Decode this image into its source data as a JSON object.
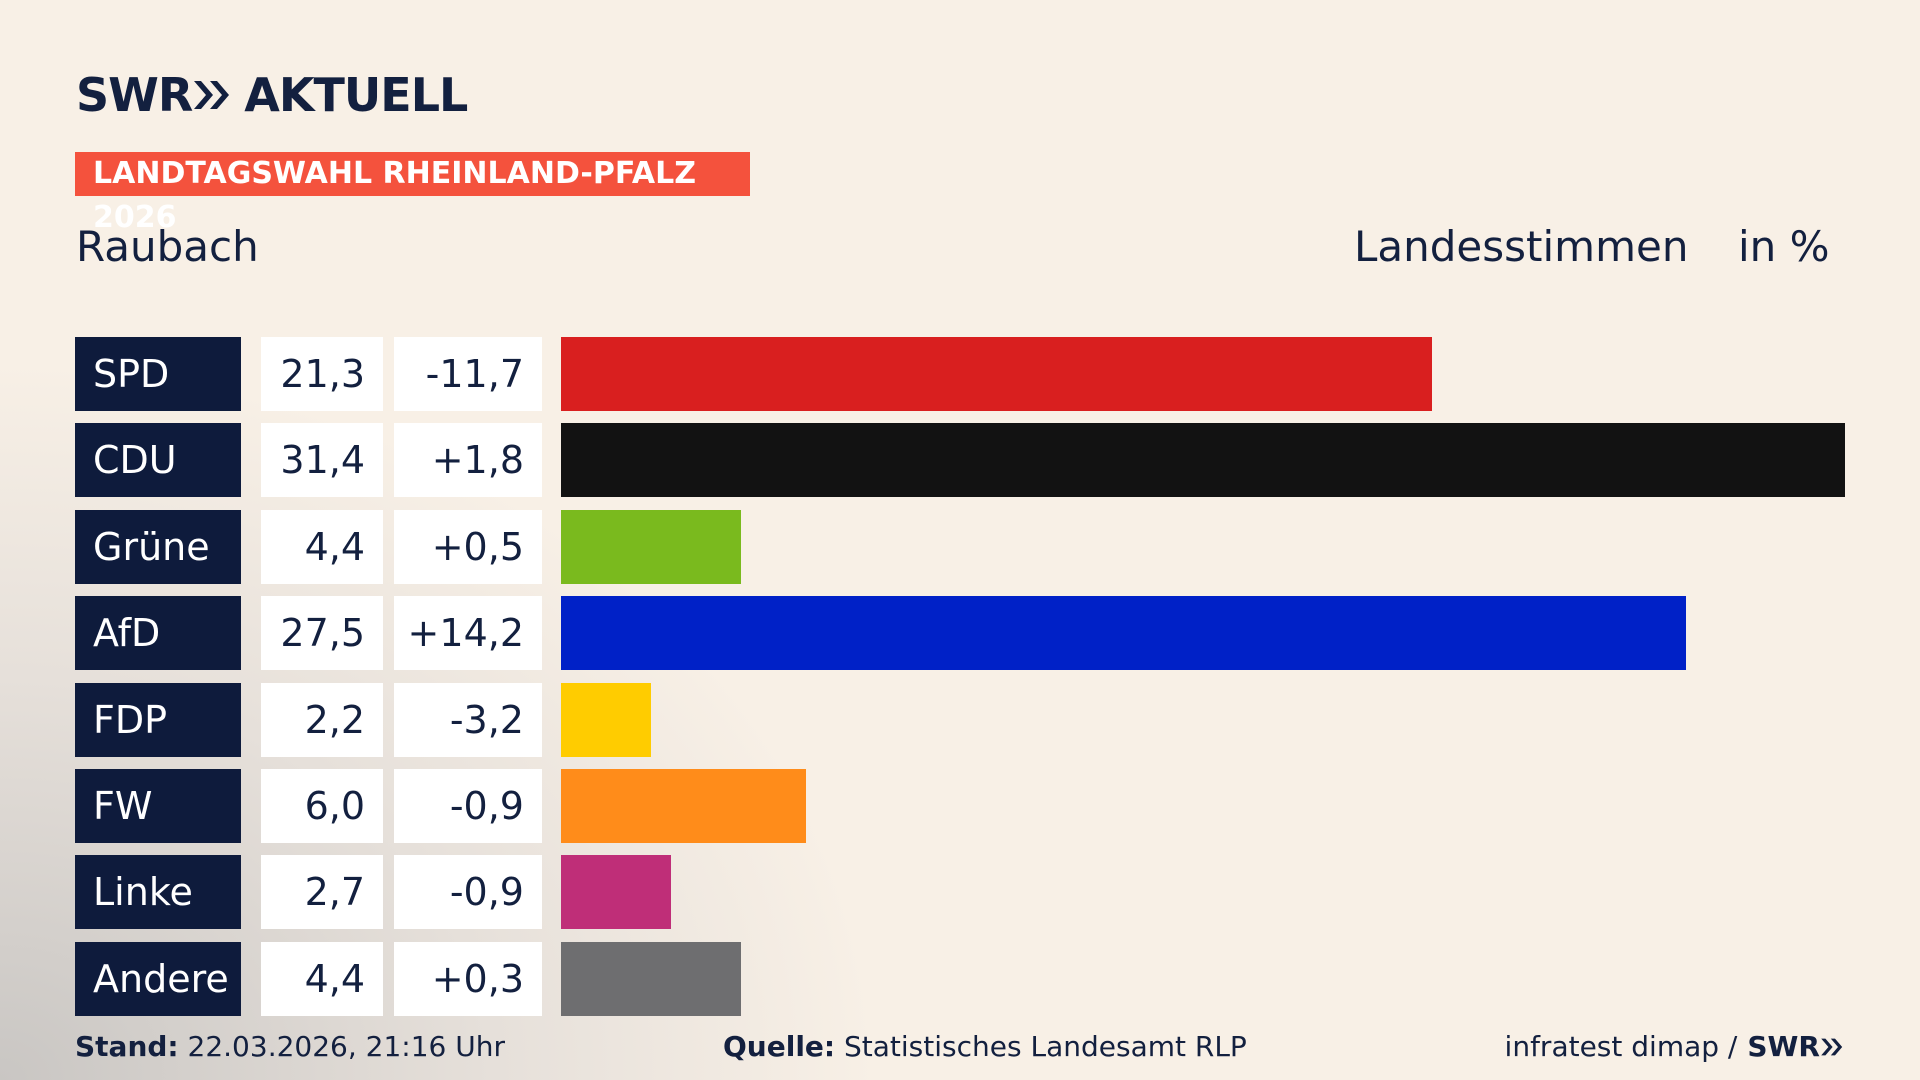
{
  "brand": {
    "name": "SWR",
    "product": "AKTUELL"
  },
  "tag": "LANDTAGSWAHL RHEINLAND-PFALZ 2026",
  "place": "Raubach",
  "chart_data": {
    "type": "bar",
    "title": "Landesstimmen",
    "unit": "in %",
    "categories": [
      "SPD",
      "CDU",
      "Grüne",
      "AfD",
      "FDP",
      "FW",
      "Linke",
      "Andere"
    ],
    "values": [
      21.3,
      31.4,
      4.4,
      27.5,
      2.2,
      6.0,
      2.7,
      4.4
    ],
    "value_labels": [
      "21,3",
      "31,4",
      "4,4",
      "27,5",
      "2,2",
      "6,0",
      "2,7",
      "4,4"
    ],
    "changes": [
      -11.7,
      1.8,
      0.5,
      14.2,
      -3.2,
      -0.9,
      -0.9,
      0.3
    ],
    "change_labels": [
      "-11,7",
      "+1,8",
      "+0,5",
      "+14,2",
      "-3,2",
      "-0,9",
      "-0,9",
      "+0,3"
    ],
    "colors": [
      "#d91f1f",
      "#121212",
      "#7aba1e",
      "#0021c7",
      "#ffcc00",
      "#ff8c1a",
      "#bf2e78",
      "#6e6e70"
    ]
  },
  "footer": {
    "stand_label": "Stand:",
    "stand": "22.03.2026, 21:16 Uhr",
    "source_label": "Quelle:",
    "source": "Statistisches Landesamt RLP",
    "credit": "infratest dimap /",
    "credit_brand": "SWR"
  }
}
